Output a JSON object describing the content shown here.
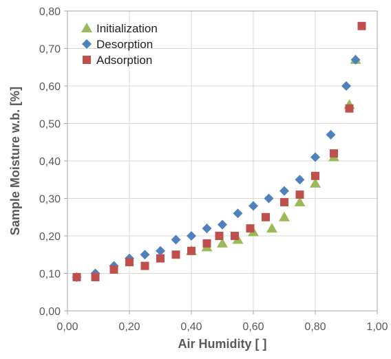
{
  "chart_data": {
    "type": "scatter",
    "title": "",
    "xlabel": "Air Humidity [ ]",
    "ylabel": "Sample Moisture w.b. [%]",
    "xlim": [
      0,
      1
    ],
    "ylim": [
      0,
      0.8
    ],
    "x_ticks": [
      0.0,
      0.2,
      0.4,
      0.6,
      0.8,
      1.0
    ],
    "x_tick_labels": [
      "0,00",
      "0,20",
      "0,40",
      "0,60",
      "0,80",
      "1,00"
    ],
    "y_ticks": [
      0.0,
      0.1,
      0.2,
      0.3,
      0.4,
      0.5,
      0.6,
      0.7,
      0.8
    ],
    "y_tick_labels": [
      "0,00",
      "0,10",
      "0,20",
      "0,30",
      "0,40",
      "0,50",
      "0,60",
      "0,70",
      "0,80"
    ],
    "grid": true,
    "legend_position": "top-left",
    "series": [
      {
        "name": "Initialization",
        "marker": "triangle",
        "color": "#9bbb59",
        "points": [
          [
            0.4,
            0.16
          ],
          [
            0.45,
            0.17
          ],
          [
            0.5,
            0.18
          ],
          [
            0.55,
            0.19
          ],
          [
            0.6,
            0.21
          ],
          [
            0.66,
            0.22
          ],
          [
            0.7,
            0.25
          ],
          [
            0.75,
            0.29
          ],
          [
            0.8,
            0.34
          ],
          [
            0.86,
            0.41
          ],
          [
            0.91,
            0.55
          ],
          [
            0.93,
            0.67
          ]
        ]
      },
      {
        "name": "Desorption",
        "marker": "diamond",
        "color": "#4f81bd",
        "points": [
          [
            0.03,
            0.09
          ],
          [
            0.09,
            0.1
          ],
          [
            0.15,
            0.12
          ],
          [
            0.2,
            0.14
          ],
          [
            0.25,
            0.15
          ],
          [
            0.3,
            0.16
          ],
          [
            0.35,
            0.19
          ],
          [
            0.4,
            0.2
          ],
          [
            0.45,
            0.22
          ],
          [
            0.5,
            0.23
          ],
          [
            0.55,
            0.26
          ],
          [
            0.6,
            0.28
          ],
          [
            0.65,
            0.3
          ],
          [
            0.7,
            0.32
          ],
          [
            0.75,
            0.35
          ],
          [
            0.8,
            0.41
          ],
          [
            0.85,
            0.47
          ],
          [
            0.9,
            0.6
          ],
          [
            0.93,
            0.67
          ]
        ]
      },
      {
        "name": "Adsorption",
        "marker": "square",
        "color": "#c0504d",
        "points": [
          [
            0.03,
            0.09
          ],
          [
            0.09,
            0.09
          ],
          [
            0.15,
            0.11
          ],
          [
            0.2,
            0.13
          ],
          [
            0.25,
            0.12
          ],
          [
            0.3,
            0.14
          ],
          [
            0.35,
            0.15
          ],
          [
            0.4,
            0.16
          ],
          [
            0.45,
            0.18
          ],
          [
            0.49,
            0.2
          ],
          [
            0.54,
            0.2
          ],
          [
            0.59,
            0.22
          ],
          [
            0.64,
            0.25
          ],
          [
            0.7,
            0.29
          ],
          [
            0.75,
            0.31
          ],
          [
            0.8,
            0.36
          ],
          [
            0.86,
            0.42
          ],
          [
            0.91,
            0.54
          ],
          [
            0.95,
            0.76
          ]
        ]
      }
    ]
  }
}
